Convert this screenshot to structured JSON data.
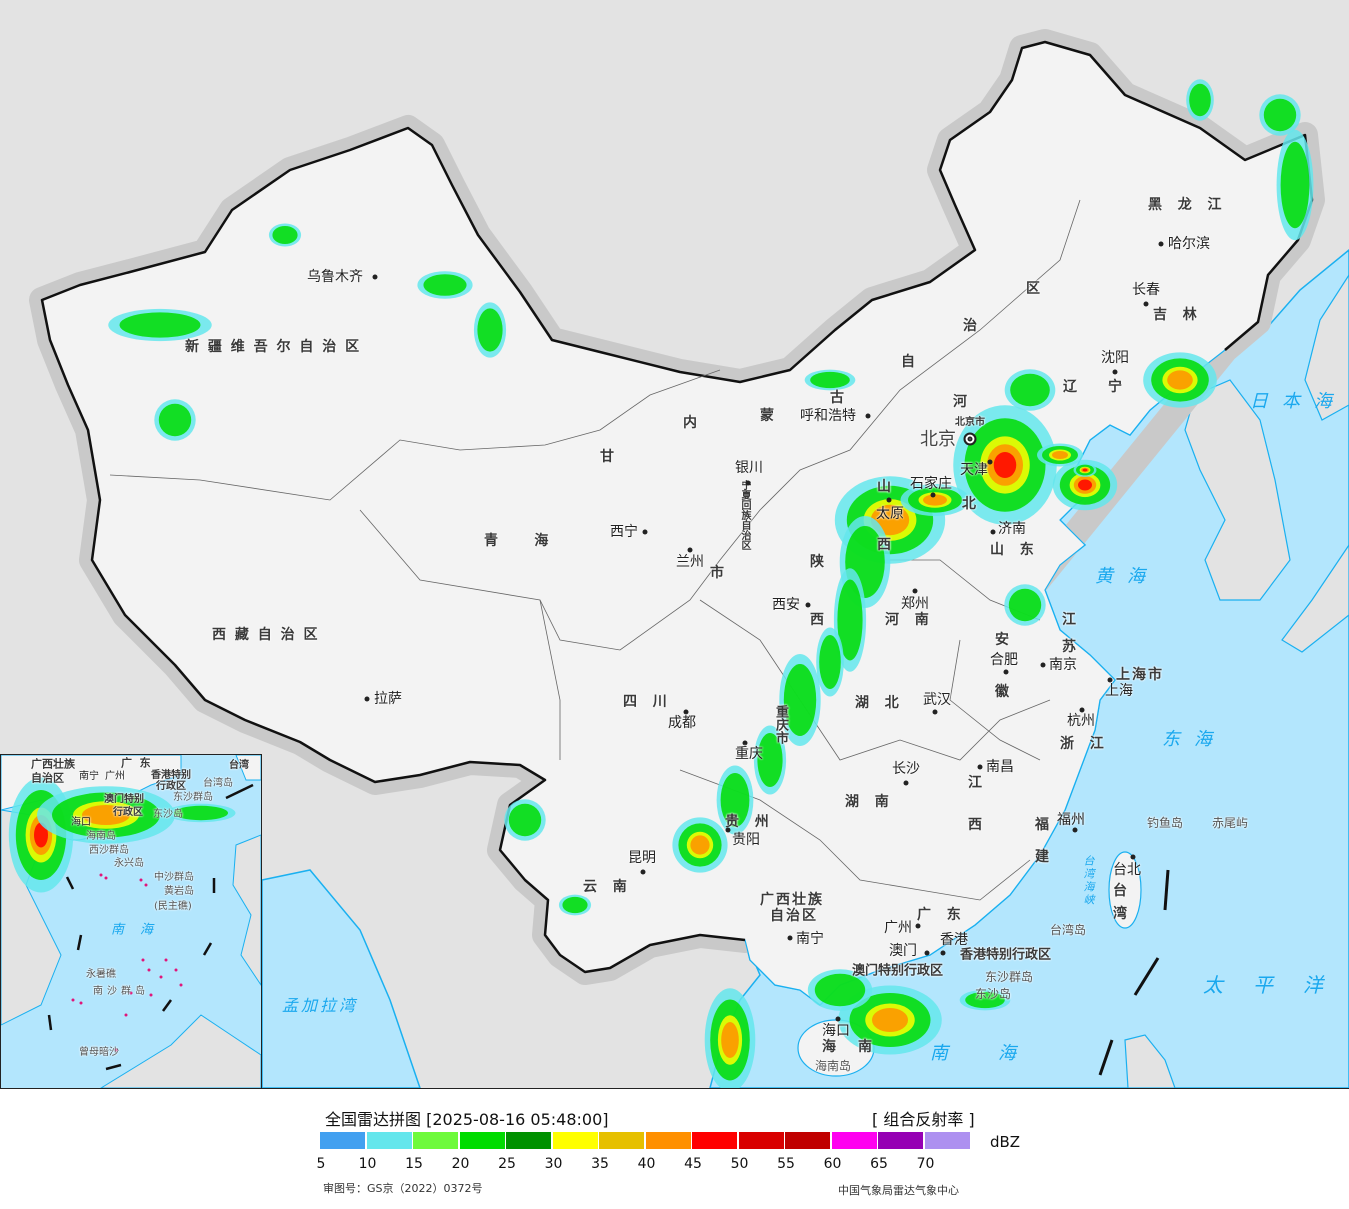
{
  "colors": {
    "sea": "#b3e6fd",
    "foreign_land": "#e3e3e3",
    "china_land": "#f3f3f3",
    "coastline": "#1ab0f0",
    "border": "#111111"
  },
  "map": {
    "provinces": [
      "新 疆 维 吾 尔 自 治 区",
      "西 藏 自 治 区",
      "青     海",
      "甘",
      "内",
      "蒙",
      "古",
      "自",
      "治",
      "区",
      "黑  龙  江",
      "吉  林",
      "辽",
      "宁",
      "河",
      "北",
      "山",
      "西",
      "山  东",
      "宁夏回族自治区",
      "陕",
      "西",
      "河  南",
      "江",
      "苏",
      "安",
      "徽",
      "湖  北",
      "四  川",
      "重庆市",
      "贵  州",
      "湖  南",
      "江",
      "西",
      "浙  江",
      "福",
      "建",
      "云  南",
      "广西壮族",
      "自治区",
      "广  东",
      "海",
      "南",
      "台",
      "湾",
      "上海市",
      "香港特别行政区",
      "澳门特别行政区",
      "北京市",
      "市"
    ],
    "cities": [
      "乌鲁木齐",
      "拉萨",
      "西宁",
      "兰州",
      "银川",
      "呼和浩特",
      "北京",
      "天津",
      "石家庄",
      "太原",
      "济南",
      "郑州",
      "西安",
      "沈阳",
      "长春",
      "哈尔滨",
      "成都",
      "重庆",
      "武汉",
      "合肥",
      "南京",
      "上海",
      "杭州",
      "长沙",
      "南昌",
      "福州",
      "贵阳",
      "昆明",
      "南宁",
      "广州",
      "澳门",
      "香港",
      "台北",
      "海口"
    ],
    "seas": [
      "日本海",
      "黄海",
      "东海",
      "南海",
      "太平洋",
      "孟加拉湾",
      "台湾海峡"
    ],
    "islands": [
      "东沙群岛",
      "东沙岛",
      "台湾岛",
      "钓鱼岛",
      "赤尾屿",
      "海南岛"
    ]
  },
  "inset": {
    "labels": [
      "广西壮族",
      "自治区",
      "南宁",
      "广  东",
      "广州",
      "香港特别",
      "行政区",
      "台湾岛",
      "台湾",
      "澳门特别",
      "行政区",
      "东沙群岛",
      "东沙岛",
      "海口",
      "海南岛",
      "西沙群岛",
      "永兴岛",
      "中沙群岛",
      "黄岩岛",
      "(民主礁)",
      "南海",
      "永暑礁",
      "南沙群岛",
      "曾母暗沙"
    ]
  },
  "legend": {
    "title": "全国雷达拼图 [2025-08-16 05:48:00]",
    "product": "[ 组合反射率 ]",
    "unit": "dBZ",
    "colors": [
      "#42a0f0",
      "#64e6ec",
      "#6efa3c",
      "#00dc00",
      "#009100",
      "#ffff00",
      "#e6c000",
      "#ff9000",
      "#ff0000",
      "#d90000",
      "#c00000",
      "#ff00f0",
      "#9600b4",
      "#ad90f0"
    ],
    "ticks": [
      "5",
      "10",
      "15",
      "20",
      "25",
      "30",
      "35",
      "40",
      "45",
      "50",
      "55",
      "60",
      "65",
      "70"
    ],
    "approval": "审图号：GS京（2022）0372号",
    "credit": "中国气象局雷达气象中心"
  }
}
